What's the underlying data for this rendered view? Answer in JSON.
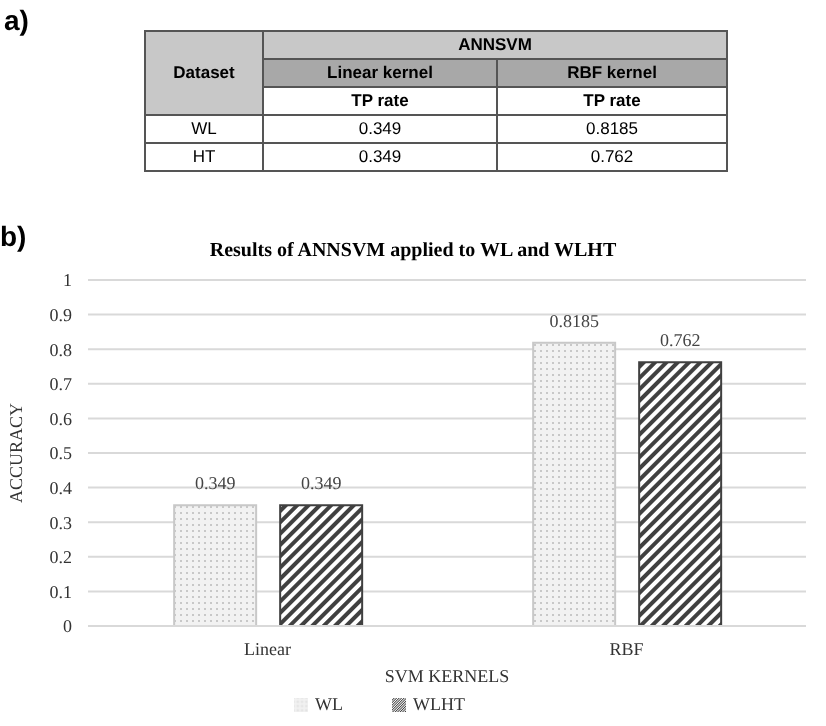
{
  "chart_data": [
    {
      "type": "other",
      "annotations": [
        "a)",
        "Dataset",
        "ANNSVM",
        "Linear kernel",
        "RBF kernel",
        "TP rate",
        "TP rate",
        "WL",
        "0.349",
        "0.8185",
        "HT",
        "0.349",
        "0.762"
      ]
    },
    {
      "type": "bar",
      "title": "Results of ANNSVM applied to WL and WLHT",
      "xlabel": "SVM KERNELS",
      "ylabel": "ACCURACY",
      "annotations": [
        "b)"
      ],
      "categories": [
        "Linear",
        "RBF"
      ],
      "series": [
        {
          "name": "WL",
          "color": "#c8c8c8",
          "values": [
            0.349,
            0.8185
          ]
        },
        {
          "name": "WLHT",
          "color": "#404040",
          "values": [
            0.349,
            0.762
          ]
        }
      ],
      "ylim": [
        0,
        1
      ],
      "yticks": [
        0,
        0.1,
        0.2,
        0.3,
        0.4,
        0.5,
        0.6,
        0.7,
        0.8,
        0.9,
        1
      ],
      "grid": "y",
      "legend": "bottom",
      "data_labels": true
    }
  ]
}
